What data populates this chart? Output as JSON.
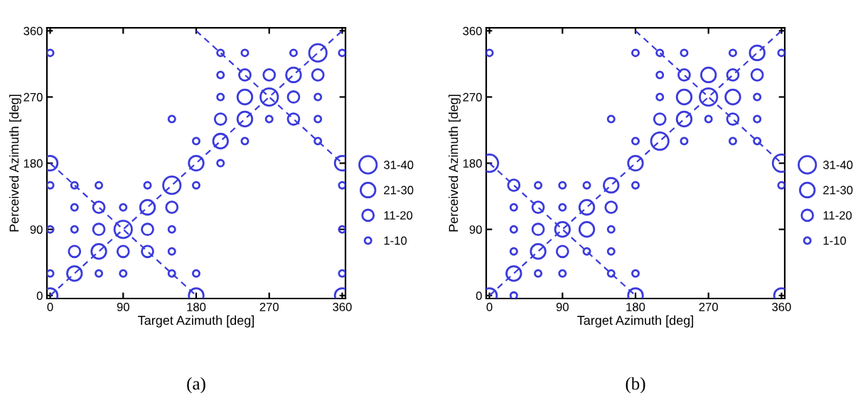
{
  "chart_data": [
    {
      "type": "bubble",
      "title": "(a)",
      "xlabel": "Target Azimuth [deg]",
      "ylabel": "Perceived Azimuth [deg]",
      "xlim": [
        -4,
        364
      ],
      "ylim": [
        -4,
        364
      ],
      "xticks": [
        0,
        90,
        180,
        270,
        360
      ],
      "yticks": [
        0,
        90,
        180,
        270,
        360
      ],
      "grid": false,
      "size_legend": [
        {
          "value": 35,
          "label": "31-40"
        },
        {
          "value": 25,
          "label": "21-30"
        },
        {
          "value": 15,
          "label": "11-20"
        },
        {
          "value": 5,
          "label": "1-10"
        }
      ],
      "series": [
        {
          "marker": "circle",
          "color": "#3b3bdc",
          "x": [
            0,
            0,
            0,
            0,
            0,
            0,
            30,
            30,
            30,
            30,
            30,
            60,
            60,
            60,
            60,
            60,
            90,
            90,
            90,
            90,
            120,
            120,
            120,
            120,
            150,
            150,
            150,
            150,
            150,
            150,
            180,
            180,
            180,
            180,
            180,
            210,
            210,
            210,
            210,
            210,
            210,
            240,
            240,
            240,
            240,
            240,
            270,
            270,
            270,
            300,
            300,
            300,
            300,
            330,
            330,
            330,
            330,
            330,
            360,
            360,
            360,
            360,
            360,
            360
          ],
          "values": [
            330,
            180,
            150,
            90,
            30,
            0,
            150,
            120,
            90,
            60,
            30,
            150,
            120,
            90,
            60,
            30,
            120,
            90,
            60,
            30,
            150,
            120,
            90,
            60,
            240,
            150,
            120,
            90,
            60,
            30,
            210,
            180,
            150,
            30,
            0,
            330,
            300,
            270,
            240,
            210,
            180,
            330,
            300,
            270,
            240,
            210,
            300,
            270,
            240,
            330,
            300,
            270,
            240,
            330,
            300,
            270,
            240,
            210,
            330,
            180,
            150,
            90,
            30,
            0
          ],
          "sizes": [
            5,
            25,
            5,
            5,
            5,
            25,
            5,
            5,
            5,
            15,
            25,
            5,
            15,
            15,
            25,
            5,
            5,
            35,
            15,
            5,
            5,
            25,
            15,
            15,
            5,
            35,
            15,
            5,
            5,
            5,
            5,
            25,
            5,
            5,
            25,
            5,
            5,
            5,
            15,
            25,
            5,
            5,
            15,
            25,
            25,
            5,
            15,
            35,
            5,
            5,
            25,
            15,
            15,
            35,
            15,
            5,
            5,
            5,
            5,
            25,
            5,
            5,
            5,
            25
          ]
        },
        {
          "type": "line",
          "line_style": "dashed",
          "color": "#3b3bdc",
          "x": [
            0,
            360
          ],
          "values": [
            0,
            360
          ]
        },
        {
          "type": "line",
          "line_style": "dashed",
          "color": "#3b3bdc",
          "x": [
            0,
            180
          ],
          "values": [
            180,
            0
          ]
        },
        {
          "type": "line",
          "line_style": "dashed",
          "color": "#3b3bdc",
          "x": [
            180,
            360
          ],
          "values": [
            360,
            180
          ]
        }
      ]
    },
    {
      "type": "bubble",
      "title": "(b)",
      "xlabel": "Target Azimuth [deg]",
      "ylabel": "Perceived Azimuth [deg]",
      "xlim": [
        -4,
        364
      ],
      "ylim": [
        -4,
        364
      ],
      "xticks": [
        0,
        90,
        180,
        270,
        360
      ],
      "yticks": [
        0,
        90,
        180,
        270,
        360
      ],
      "grid": false,
      "size_legend": [
        {
          "value": 35,
          "label": "31-40"
        },
        {
          "value": 25,
          "label": "21-30"
        },
        {
          "value": 15,
          "label": "11-20"
        },
        {
          "value": 5,
          "label": "1-10"
        }
      ],
      "series": [
        {
          "marker": "circle",
          "color": "#3b3bdc",
          "x": [
            0,
            0,
            0,
            30,
            30,
            30,
            30,
            30,
            30,
            60,
            60,
            60,
            60,
            60,
            90,
            90,
            90,
            90,
            90,
            120,
            120,
            120,
            120,
            150,
            150,
            150,
            150,
            150,
            150,
            180,
            180,
            180,
            180,
            180,
            180,
            210,
            210,
            210,
            210,
            210,
            240,
            240,
            240,
            240,
            240,
            270,
            270,
            270,
            300,
            300,
            300,
            300,
            300,
            330,
            330,
            330,
            330,
            330,
            360,
            360,
            360,
            360
          ],
          "values": [
            330,
            180,
            0,
            150,
            120,
            90,
            60,
            30,
            0,
            150,
            120,
            90,
            60,
            30,
            150,
            120,
            90,
            60,
            30,
            150,
            120,
            90,
            60,
            240,
            150,
            120,
            90,
            60,
            30,
            330,
            210,
            180,
            150,
            30,
            0,
            330,
            300,
            270,
            240,
            210,
            330,
            300,
            270,
            240,
            210,
            300,
            270,
            240,
            330,
            300,
            270,
            240,
            210,
            330,
            300,
            270,
            240,
            210,
            330,
            180,
            150,
            0
          ],
          "sizes": [
            5,
            35,
            25,
            15,
            5,
            5,
            5,
            25,
            5,
            5,
            15,
            15,
            25,
            5,
            5,
            5,
            25,
            15,
            5,
            5,
            25,
            25,
            5,
            5,
            25,
            15,
            5,
            5,
            5,
            5,
            5,
            25,
            5,
            5,
            25,
            5,
            5,
            5,
            15,
            35,
            5,
            15,
            25,
            25,
            5,
            25,
            35,
            5,
            5,
            15,
            25,
            15,
            5,
            25,
            15,
            5,
            5,
            5,
            5,
            35,
            5,
            25
          ]
        },
        {
          "type": "line",
          "line_style": "dashed",
          "color": "#3b3bdc",
          "x": [
            0,
            360
          ],
          "values": [
            0,
            360
          ]
        },
        {
          "type": "line",
          "line_style": "dashed",
          "color": "#3b3bdc",
          "x": [
            0,
            180
          ],
          "values": [
            180,
            0
          ]
        },
        {
          "type": "line",
          "line_style": "dashed",
          "color": "#3b3bdc",
          "x": [
            180,
            360
          ],
          "values": [
            360,
            180
          ]
        }
      ]
    }
  ]
}
